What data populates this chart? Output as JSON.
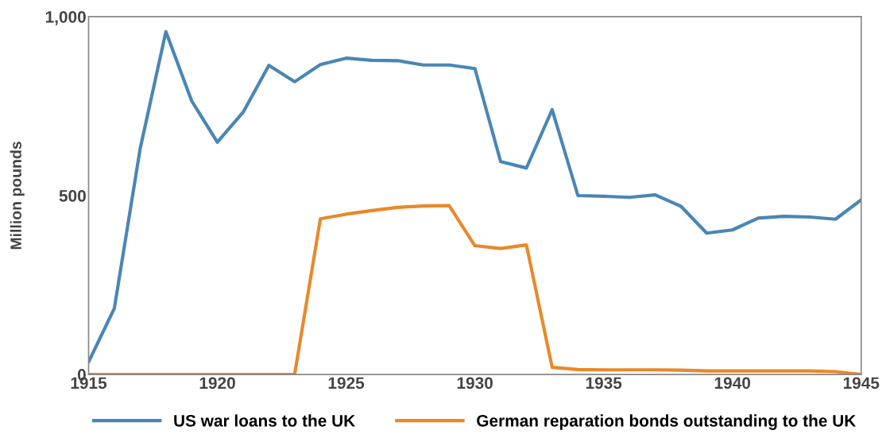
{
  "chart_data": {
    "type": "line",
    "ylabel": "Million pounds",
    "x": [
      1915,
      1916,
      1917,
      1918,
      1919,
      1920,
      1921,
      1922,
      1923,
      1924,
      1925,
      1926,
      1927,
      1928,
      1929,
      1930,
      1931,
      1932,
      1933,
      1934,
      1935,
      1936,
      1937,
      1938,
      1939,
      1940,
      1941,
      1942,
      1943,
      1944,
      1945
    ],
    "series": [
      {
        "name": "US war loans to the UK",
        "color": "#4a86b5",
        "values": [
          35,
          185,
          630,
          958,
          765,
          649,
          733,
          864,
          818,
          866,
          884,
          878,
          877,
          865,
          865,
          855,
          595,
          577,
          740,
          500,
          498,
          495,
          502,
          470,
          395,
          404,
          437,
          442,
          440,
          434,
          488
        ]
      },
      {
        "name": "German reparation bonds outstanding to the UK",
        "color": "#e8892b",
        "values": [
          0,
          0,
          0,
          0,
          0,
          0,
          0,
          0,
          0,
          435,
          448,
          458,
          467,
          471,
          472,
          360,
          352,
          362,
          20,
          14,
          13,
          13,
          13,
          12,
          10,
          10,
          10,
          10,
          10,
          8,
          0
        ]
      }
    ],
    "xlim": [
      1915,
      1945
    ],
    "xticks": [
      1915,
      1920,
      1925,
      1930,
      1935,
      1940,
      1945
    ],
    "ylim": [
      0,
      1000
    ],
    "yticks": [
      0,
      {
        "value": 500,
        "label": "500"
      },
      {
        "value": 1000,
        "label": "1,000"
      }
    ],
    "grid": false,
    "legend": "bottom"
  }
}
